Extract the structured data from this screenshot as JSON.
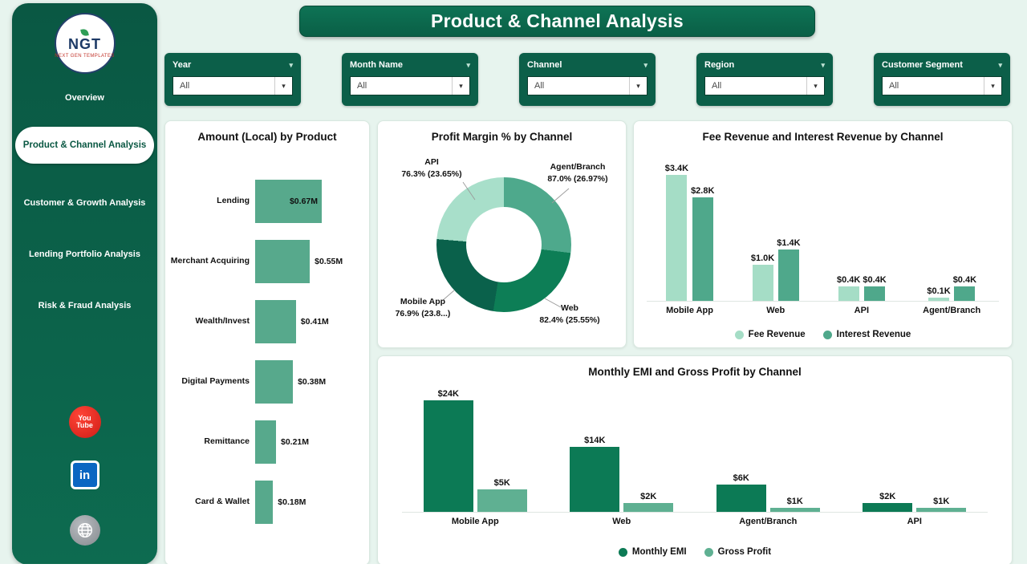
{
  "page_title": "Product & Channel Analysis",
  "theme": {
    "sidebar_green": "#0b5c46",
    "header_green": "#0c6a4d",
    "background_mint": "#e7f4ee",
    "bar_green": "#57a98c"
  },
  "icons": {
    "chevron_down": "▾"
  },
  "sidebar": {
    "logo": {
      "text": "NGT",
      "tagline": "NEXT GEN TEMPLATES"
    },
    "items": [
      {
        "label": "Overview",
        "active": false
      },
      {
        "label": "Product & Channel Analysis",
        "active": true
      },
      {
        "label": "Customer & Growth Analysis",
        "active": false
      },
      {
        "label": "Lending Portfolio Analysis",
        "active": false
      },
      {
        "label": "Risk & Fraud Analysis",
        "active": false
      }
    ],
    "social": {
      "youtube_line1": "You",
      "youtube_line2": "Tube",
      "linkedin": "in"
    }
  },
  "filters": [
    {
      "label": "Year",
      "value": "All"
    },
    {
      "label": "Month Name",
      "value": "All"
    },
    {
      "label": "Channel",
      "value": "All"
    },
    {
      "label": "Region",
      "value": "All"
    },
    {
      "label": "Customer Segment",
      "value": "All"
    }
  ],
  "chart_data": [
    {
      "type": "bar",
      "orientation": "horizontal",
      "title": "Amount (Local) by Product",
      "categories": [
        "Lending",
        "Merchant Acquiring",
        "Wealth/Invest",
        "Digital Payments",
        "Remittance",
        "Card & Wallet"
      ],
      "values": [
        0.67,
        0.55,
        0.41,
        0.38,
        0.21,
        0.18
      ],
      "labels": [
        "$0.67M",
        "$0.55M",
        "$0.41M",
        "$0.38M",
        "$0.21M",
        "$0.18M"
      ],
      "unit": "M",
      "bar_color": "#57a98c",
      "legend_position": "none"
    },
    {
      "type": "pie",
      "title": "Profit Margin % by Channel",
      "slices": [
        {
          "name": "Agent/Branch",
          "detail": "87.0% (26.97%)",
          "pct": 26.97,
          "color": "#4ea98c"
        },
        {
          "name": "Web",
          "detail": "82.4% (25.55%)",
          "pct": 25.55,
          "color": "#0d7e56"
        },
        {
          "name": "Mobile App",
          "detail": "76.9% (23.8...)",
          "pct": 23.8,
          "color": "#0a614b"
        },
        {
          "name": "API",
          "detail": "76.3% (23.65%)",
          "pct": 23.65,
          "color": "#a8dfca"
        }
      ],
      "donut": true
    },
    {
      "type": "bar",
      "title": "Fee Revenue and Interest Revenue by Channel",
      "categories": [
        "Mobile App",
        "Web",
        "API",
        "Agent/Branch"
      ],
      "series": [
        {
          "name": "Fee Revenue",
          "color": "#a5ddc6",
          "values": [
            3.4,
            1.0,
            0.4,
            0.1
          ],
          "labels": [
            "$3.4K",
            "$1.0K",
            "$0.4K",
            "$0.1K"
          ]
        },
        {
          "name": "Interest Revenue",
          "color": "#4fa88b",
          "values": [
            2.8,
            1.4,
            0.4,
            0.4
          ],
          "labels": [
            "$2.8K",
            "$1.4K",
            "$0.4K",
            "$0.4K"
          ]
        }
      ],
      "ylim": [
        0,
        3.4
      ],
      "legend_position": "bottom"
    },
    {
      "type": "bar",
      "title": "Monthly EMI and Gross Profit by Channel",
      "categories": [
        "Mobile App",
        "Web",
        "Agent/Branch",
        "API"
      ],
      "series": [
        {
          "name": "Monthly EMI",
          "color": "#0c7a55",
          "values": [
            24,
            14,
            6,
            2
          ],
          "labels": [
            "$24K",
            "$14K",
            "$6K",
            "$2K"
          ]
        },
        {
          "name": "Gross Profit",
          "color": "#5fb092",
          "values": [
            5,
            2,
            1,
            1
          ],
          "labels": [
            "$5K",
            "$2K",
            "$1K",
            "$1K"
          ]
        }
      ],
      "ylim": [
        0,
        24
      ],
      "legend_position": "bottom"
    }
  ]
}
